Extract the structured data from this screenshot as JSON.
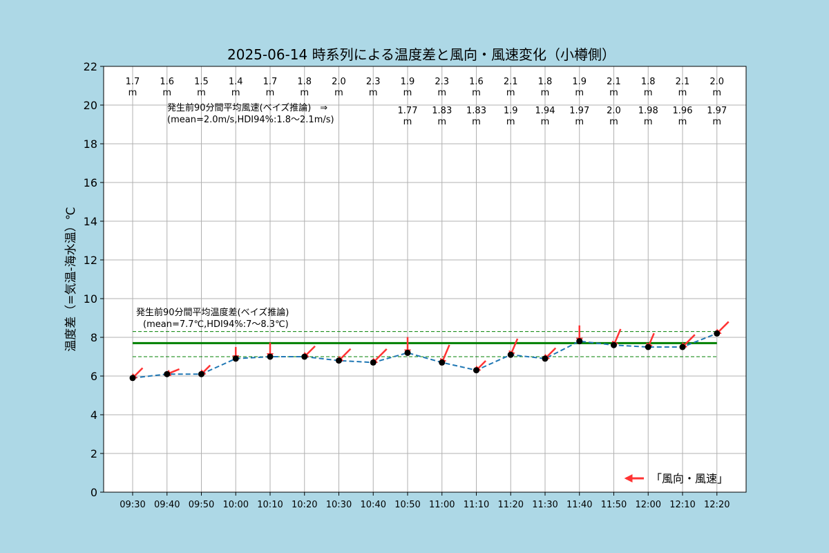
{
  "chart_data": {
    "type": "line",
    "title": "2025-06-14 時系列による温度差と風向・風速変化（小樽側）",
    "xlabel": "",
    "ylabel": "温度差（=気温-海水温）℃",
    "ylim": [
      0,
      22
    ],
    "yticks": [
      "0",
      "2",
      "4",
      "6",
      "8",
      "10",
      "12",
      "14",
      "16",
      "18",
      "20",
      "22"
    ],
    "grid": true,
    "categories": [
      "09:30",
      "09:40",
      "09:50",
      "10:00",
      "10:10",
      "10:20",
      "10:30",
      "10:40",
      "10:50",
      "11:00",
      "11:10",
      "11:20",
      "11:30",
      "11:40",
      "11:50",
      "12:00",
      "12:10",
      "12:20"
    ],
    "series": [
      {
        "name": "",
        "color": "#1f77b4",
        "values": [
          5.9,
          6.1,
          6.1,
          6.9,
          7.0,
          7.0,
          6.8,
          6.7,
          7.2,
          6.7,
          6.3,
          7.1,
          6.9,
          7.8,
          7.6,
          7.5,
          7.5,
          8.2
        ]
      }
    ],
    "wind_speed_labels": [
      "1.7",
      "1.6",
      "1.5",
      "1.4",
      "1.7",
      "1.8",
      "2.0",
      "2.3",
      "1.9",
      "2.3",
      "1.6",
      "2.1",
      "1.8",
      "1.9",
      "2.1",
      "1.8",
      "2.1",
      "2.0"
    ],
    "wind_bayes_labels": [
      "",
      "",
      "",
      "",
      "",
      "",
      "",
      "",
      "1.77",
      "1.83",
      "1.83",
      "1.9",
      "1.94",
      "1.97",
      "2.0",
      "1.98",
      "1.96",
      "1.97"
    ],
    "unit_label": "m",
    "wind_direction_deg": [
      225,
      248,
      225,
      180,
      180,
      225,
      225,
      225,
      180,
      203,
      225,
      203,
      225,
      180,
      203,
      203,
      225,
      225
    ],
    "wind_speed_ms": [
      1.7,
      1.6,
      1.5,
      1.4,
      1.7,
      1.8,
      2.0,
      2.3,
      1.9,
      2.3,
      1.6,
      2.1,
      1.8,
      1.9,
      2.1,
      1.8,
      2.1,
      2.0
    ],
    "temp_mean": 7.7,
    "temp_hdi": [
      7.0,
      8.3
    ],
    "annotations": {
      "wind_line1": "発生前90分間平均風速(ベイズ推論)　⇒",
      "wind_line2": "(mean=2.0m/s,HDI94%:1.8～2.1m/s)",
      "temp_line1": "発生前90分間平均温度差(ベイズ推論)",
      "temp_line2": "(mean=7.7℃,HDI94%:7～8.3℃)"
    },
    "legend": {
      "label": "「風向・風速」",
      "placement": "bottom-right"
    },
    "colors": {
      "background": "#add8e6",
      "plot_bg": "#ffffff",
      "line": "#1f77b4",
      "marker": "#000000",
      "mean_line": "#008000",
      "arrow": "#ff3333",
      "grid": "#b0b0b0"
    }
  }
}
